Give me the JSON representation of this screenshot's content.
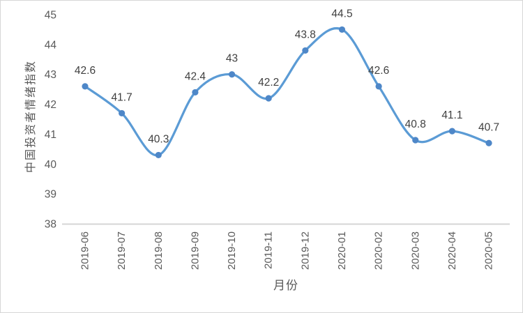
{
  "chart_data": {
    "type": "line",
    "smooth": true,
    "marker": "circle",
    "grid": false,
    "legend_position": "none",
    "categories": [
      "2019-06",
      "2019-07",
      "2019-08",
      "2019-09",
      "2019-10",
      "2019-11",
      "2019-12",
      "2020-01",
      "2020-02",
      "2020-03",
      "2020-04",
      "2020-05"
    ],
    "values": [
      42.6,
      41.7,
      40.3,
      42.4,
      43,
      42.2,
      43.8,
      44.5,
      42.6,
      40.8,
      41.1,
      40.7
    ],
    "data_labels": [
      "42.6",
      "41.7",
      "40.3",
      "42.4",
      "43",
      "42.2",
      "43.8",
      "44.5",
      "42.6",
      "40.8",
      "41.1",
      "40.7"
    ],
    "title": "",
    "xlabel": "月份",
    "ylabel": "中国投资者情绪指数",
    "ylim": [
      38,
      45
    ],
    "yticks": [
      38,
      39,
      40,
      41,
      42,
      43,
      44,
      45
    ],
    "colors": {
      "line": "#5B9BD5",
      "marker_fill": "#4E87C8",
      "data_label": "#3F3F3F",
      "tick_label": "#595959",
      "axis_title": "#595959",
      "axis_line": "#D6D6D6",
      "background": "#FFFFFF",
      "border": "#D6D6D6"
    }
  }
}
